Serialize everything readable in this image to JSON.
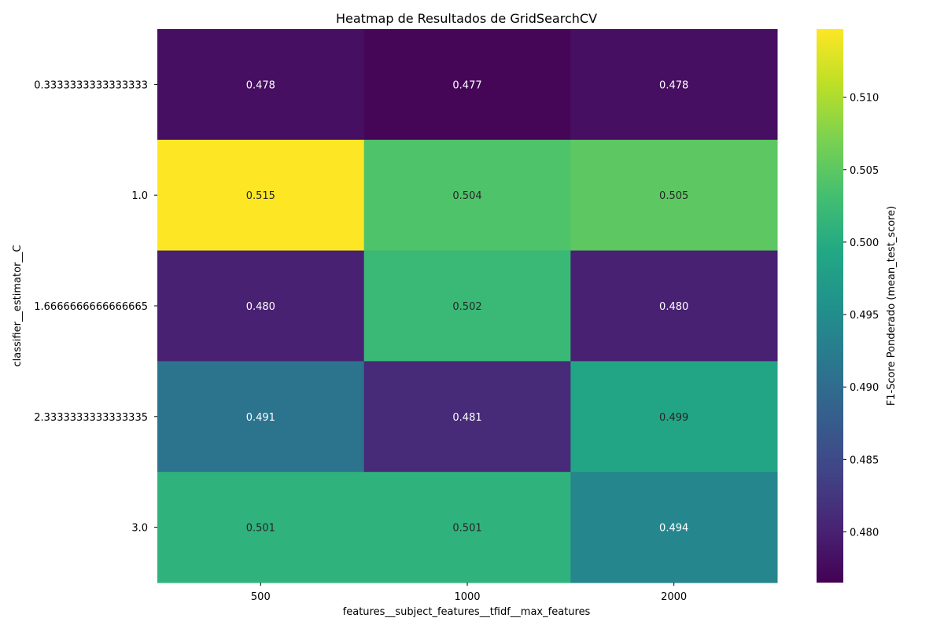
{
  "chart_data": {
    "type": "heatmap",
    "title": "Heatmap de Resultados de GridSearchCV",
    "xlabel": "features__subject_features__tfidf__max_features",
    "ylabel": "classifier__estimator__C",
    "x_categories": [
      "500",
      "1000",
      "2000"
    ],
    "y_categories": [
      "0.3333333333333333",
      "1.0",
      "1.6666666666666665",
      "2.3333333333333335",
      "3.0"
    ],
    "values": [
      [
        0.478,
        0.477,
        0.478
      ],
      [
        0.515,
        0.504,
        0.505
      ],
      [
        0.48,
        0.502,
        0.48
      ],
      [
        0.491,
        0.481,
        0.499
      ],
      [
        0.501,
        0.501,
        0.494
      ]
    ],
    "value_format": "0.000",
    "colormap": "viridis",
    "color_range": [
      0.4765,
      0.5147
    ],
    "colorbar": {
      "label": "F1-Score Ponderado (mean_test_score)",
      "ticks": [
        "0.480",
        "0.485",
        "0.490",
        "0.495",
        "0.500",
        "0.505",
        "0.510"
      ]
    },
    "grid": false
  }
}
